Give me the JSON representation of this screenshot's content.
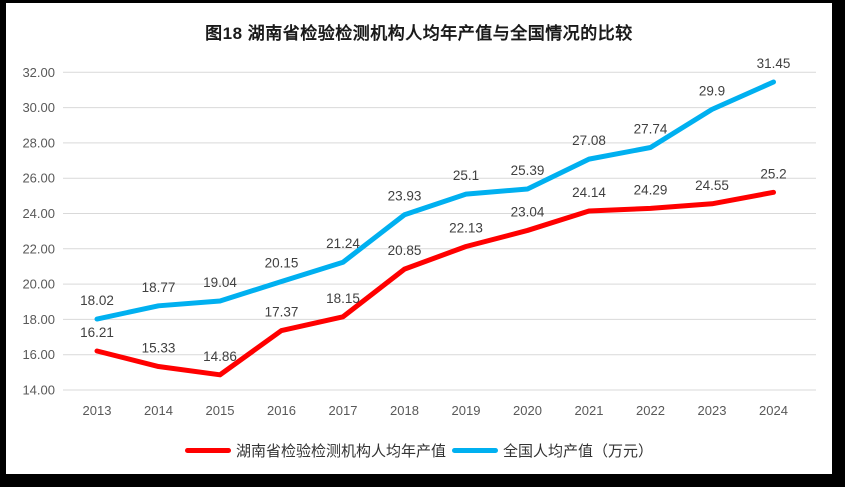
{
  "frame": {
    "background_color": "#000000",
    "canvas_color": "#FFFFFF"
  },
  "chart_data": {
    "type": "line",
    "title": "图18 湖南省检验检测机构人均年产值与全国情况的比较",
    "categories": [
      "2013",
      "2014",
      "2015",
      "2016",
      "2017",
      "2018",
      "2019",
      "2020",
      "2021",
      "2022",
      "2023",
      "2024"
    ],
    "series": [
      {
        "name": "湖南省检验检测机构人均年产值",
        "color": "#FF0000",
        "values": [
          16.21,
          15.33,
          14.86,
          17.37,
          18.15,
          20.85,
          22.13,
          23.04,
          24.14,
          24.29,
          24.55,
          25.2
        ]
      },
      {
        "name": "全国人均产值（万元）",
        "color": "#00B0F0",
        "values": [
          18.02,
          18.77,
          19.04,
          20.15,
          21.24,
          23.93,
          25.1,
          25.39,
          27.08,
          27.74,
          29.9,
          31.45
        ]
      }
    ],
    "ylim": [
      14,
      32
    ],
    "ytick_step": 2,
    "ytick_labels": [
      "14.00",
      "16.00",
      "18.00",
      "20.00",
      "22.00",
      "24.00",
      "26.00",
      "28.00",
      "30.00",
      "32.00"
    ],
    "grid": true,
    "gridline_color": "#D9D9D9",
    "axis_label_color": "#595959",
    "data_label_color": "#404040",
    "legend_position": "bottom",
    "line_width": 5
  }
}
